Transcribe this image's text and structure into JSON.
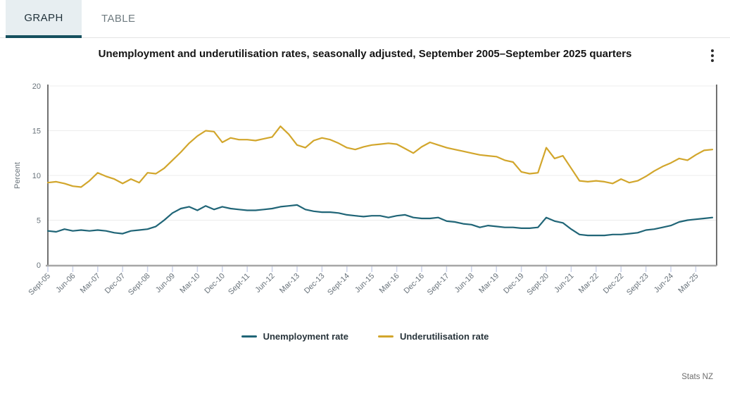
{
  "tabs": {
    "graph": "GRAPH",
    "table": "TABLE"
  },
  "title": "Unemployment and underutilisation rates, seasonally adjusted, September 2005–September 2025 quarters",
  "attribution": "Stats NZ",
  "colors": {
    "tab_active_bg": "#e7eef1",
    "tab_accent": "#15505e",
    "unemployment_line": "#206577",
    "underutilisation_line": "#d2a62c"
  },
  "chart_data": {
    "type": "line",
    "title": "Unemployment and underutilisation rates, seasonally adjusted, September 2005–September 2025 quarters",
    "xlabel": "",
    "ylabel": "Percent",
    "ylim": [
      0,
      20
    ],
    "yticks": [
      0,
      5,
      10,
      15,
      20
    ],
    "grid": true,
    "legend_position": "bottom",
    "n_points": 81,
    "x_tick_every": 3,
    "x_tick_labels": [
      "Sept-05",
      "Jun-06",
      "Mar-07",
      "Dec-07",
      "Sept-08",
      "Jun-09",
      "Mar-10",
      "Dec-10",
      "Sept-11",
      "Jun-12",
      "Mar-13",
      "Dec-13",
      "Sept-14",
      "Jun-15",
      "Mar-16",
      "Dec-16",
      "Sept-17",
      "Jun-18",
      "Mar-19",
      "Dec-19",
      "Sept-20",
      "Jun-21",
      "Mar-22",
      "Dec-22",
      "Sept-23",
      "Jun-24",
      "Mar-25"
    ],
    "series": [
      {
        "name": "Unemployment rate",
        "color": "#206577",
        "values": [
          3.8,
          3.7,
          4.0,
          3.8,
          3.9,
          3.8,
          3.9,
          3.8,
          3.6,
          3.5,
          3.8,
          3.9,
          4.0,
          4.3,
          5.0,
          5.8,
          6.3,
          6.5,
          6.1,
          6.6,
          6.2,
          6.5,
          6.3,
          6.2,
          6.1,
          6.1,
          6.2,
          6.3,
          6.5,
          6.6,
          6.7,
          6.2,
          6.0,
          5.9,
          5.9,
          5.8,
          5.6,
          5.5,
          5.4,
          5.5,
          5.5,
          5.3,
          5.5,
          5.6,
          5.3,
          5.2,
          5.2,
          5.3,
          4.9,
          4.8,
          4.6,
          4.5,
          4.2,
          4.4,
          4.3,
          4.2,
          4.2,
          4.1,
          4.1,
          4.2,
          5.3,
          4.9,
          4.7,
          4.0,
          3.4,
          3.3,
          3.3,
          3.3,
          3.4,
          3.4,
          3.5,
          3.6,
          3.9,
          4.0,
          4.2,
          4.4,
          4.8,
          5.0,
          5.1,
          5.2,
          5.3
        ]
      },
      {
        "name": "Underutilisation rate",
        "color": "#d2a62c",
        "values": [
          9.2,
          9.3,
          9.1,
          8.8,
          8.7,
          9.4,
          10.3,
          9.9,
          9.6,
          9.1,
          9.6,
          9.2,
          10.3,
          10.2,
          10.8,
          11.7,
          12.6,
          13.6,
          14.4,
          15.0,
          14.9,
          13.7,
          14.2,
          14.0,
          14.0,
          13.9,
          14.1,
          14.3,
          15.5,
          14.6,
          13.4,
          13.1,
          13.9,
          14.2,
          14.0,
          13.6,
          13.1,
          12.9,
          13.2,
          13.4,
          13.5,
          13.6,
          13.5,
          13.0,
          12.5,
          13.2,
          13.7,
          13.4,
          13.1,
          12.9,
          12.7,
          12.5,
          12.3,
          12.2,
          12.1,
          11.7,
          11.5,
          10.4,
          10.2,
          10.3,
          13.1,
          11.9,
          12.2,
          10.8,
          9.4,
          9.3,
          9.4,
          9.3,
          9.1,
          9.6,
          9.2,
          9.4,
          9.9,
          10.5,
          11.0,
          11.4,
          11.9,
          11.7,
          12.3,
          12.8,
          12.9
        ]
      }
    ]
  }
}
